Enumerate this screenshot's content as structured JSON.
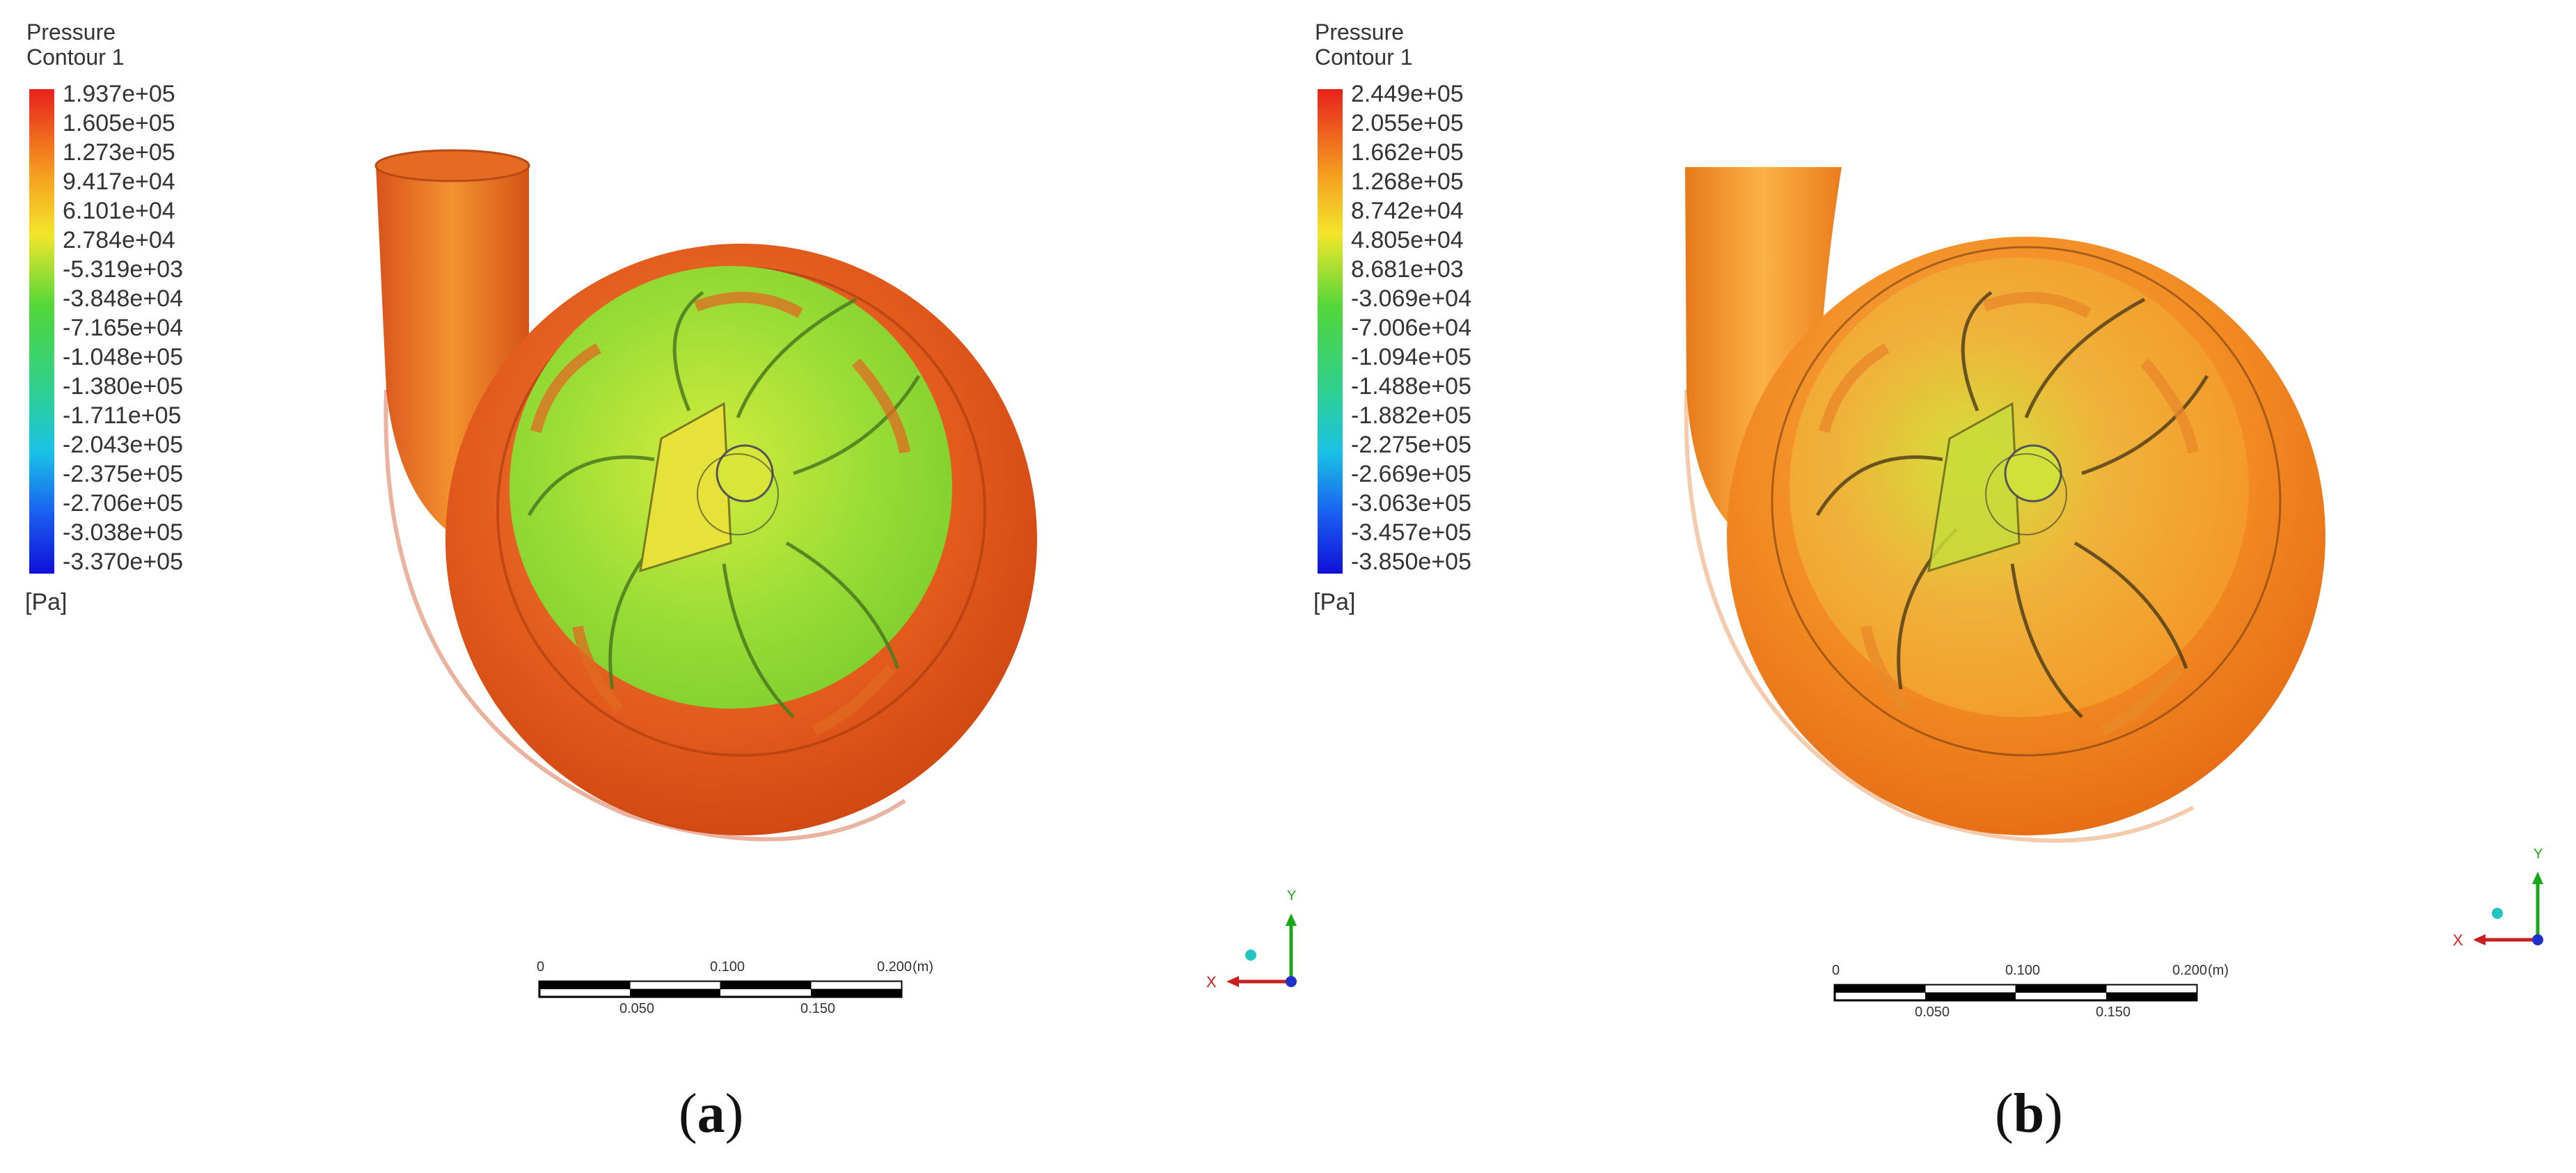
{
  "panels": [
    {
      "id": "a",
      "legend": {
        "title1": "Pressure",
        "title2": "Contour 1",
        "ticks": [
          "1.937e+05",
          "1.605e+05",
          "1.273e+05",
          "9.417e+04",
          "6.101e+04",
          "2.784e+04",
          "-5.319e+03",
          "-3.848e+04",
          "-7.165e+04",
          "-1.048e+05",
          "-1.380e+05",
          "-1.711e+05",
          "-2.043e+05",
          "-2.375e+05",
          "-2.706e+05",
          "-3.038e+05",
          "-3.370e+05"
        ],
        "unit": "[Pa]"
      },
      "scale": {
        "ticks_top": [
          "0",
          "0.100",
          "0.200"
        ],
        "unit": "(m)",
        "ticks_bottom": [
          "0.050",
          "0.150"
        ]
      },
      "axes": {
        "x": "X",
        "y": "Y"
      },
      "caption": {
        "open": "(",
        "letter": "a",
        "close": ")"
      }
    },
    {
      "id": "b",
      "legend": {
        "title1": "Pressure",
        "title2": "Contour 1",
        "ticks": [
          "2.449e+05",
          "2.055e+05",
          "1.662e+05",
          "1.268e+05",
          "8.742e+04",
          "4.805e+04",
          "8.681e+03",
          "-3.069e+04",
          "-7.006e+04",
          "-1.094e+05",
          "-1.488e+05",
          "-1.882e+05",
          "-2.275e+05",
          "-2.669e+05",
          "-3.063e+05",
          "-3.457e+05",
          "-3.850e+05"
        ],
        "unit": "[Pa]"
      },
      "scale": {
        "ticks_top": [
          "0",
          "0.100",
          "0.200"
        ],
        "unit": "(m)",
        "ticks_bottom": [
          "0.050",
          "0.150"
        ]
      },
      "axes": {
        "x": "X",
        "y": "Y"
      },
      "caption": {
        "open": "(",
        "letter": "b",
        "close": ")"
      }
    }
  ],
  "colors": {
    "casing_a": "#e2501c",
    "casing_b": "#f07d1e",
    "impeller_a": "#9edc3a",
    "impeller_b": "#f0a530",
    "hub": "#e6e23a"
  }
}
